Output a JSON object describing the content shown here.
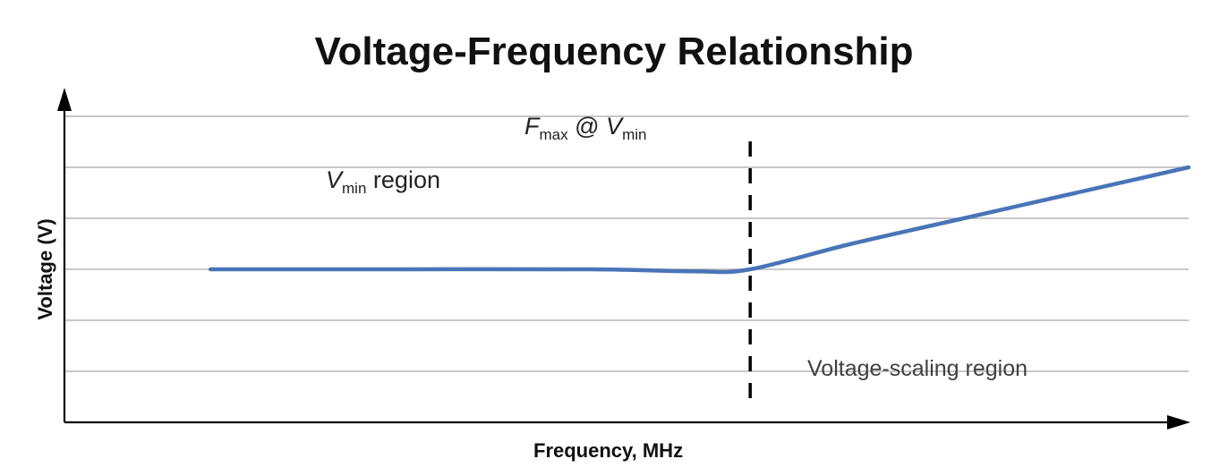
{
  "chart_data": {
    "type": "line",
    "title": "Voltage-Frequency Relationship",
    "xlabel": "Frequency, MHz",
    "ylabel": "Voltage (V)",
    "xlim": [
      0,
      100
    ],
    "ylim": [
      0,
      6
    ],
    "grid": "horizontal",
    "gridlines_y": [
      1,
      2,
      3,
      4,
      5,
      6
    ],
    "line_color": "#4a74b8",
    "series": [
      {
        "x": [
          13,
          30,
          47,
          56,
          61,
          70,
          80,
          90,
          100
        ],
        "y": [
          3.0,
          3.0,
          3.0,
          2.96,
          3.0,
          3.5,
          4.0,
          4.5,
          5.0
        ]
      }
    ],
    "marker_line": {
      "x": 61,
      "style": "dashed",
      "label": {
        "main": "F",
        "sub1": "max",
        "mid": " @ ",
        "main2": "V",
        "sub2": "min"
      }
    },
    "annotations": {
      "vmin_region": {
        "main": "V",
        "sub": "min",
        "rest": " region"
      },
      "scaling_region": "Voltage-scaling region"
    }
  }
}
